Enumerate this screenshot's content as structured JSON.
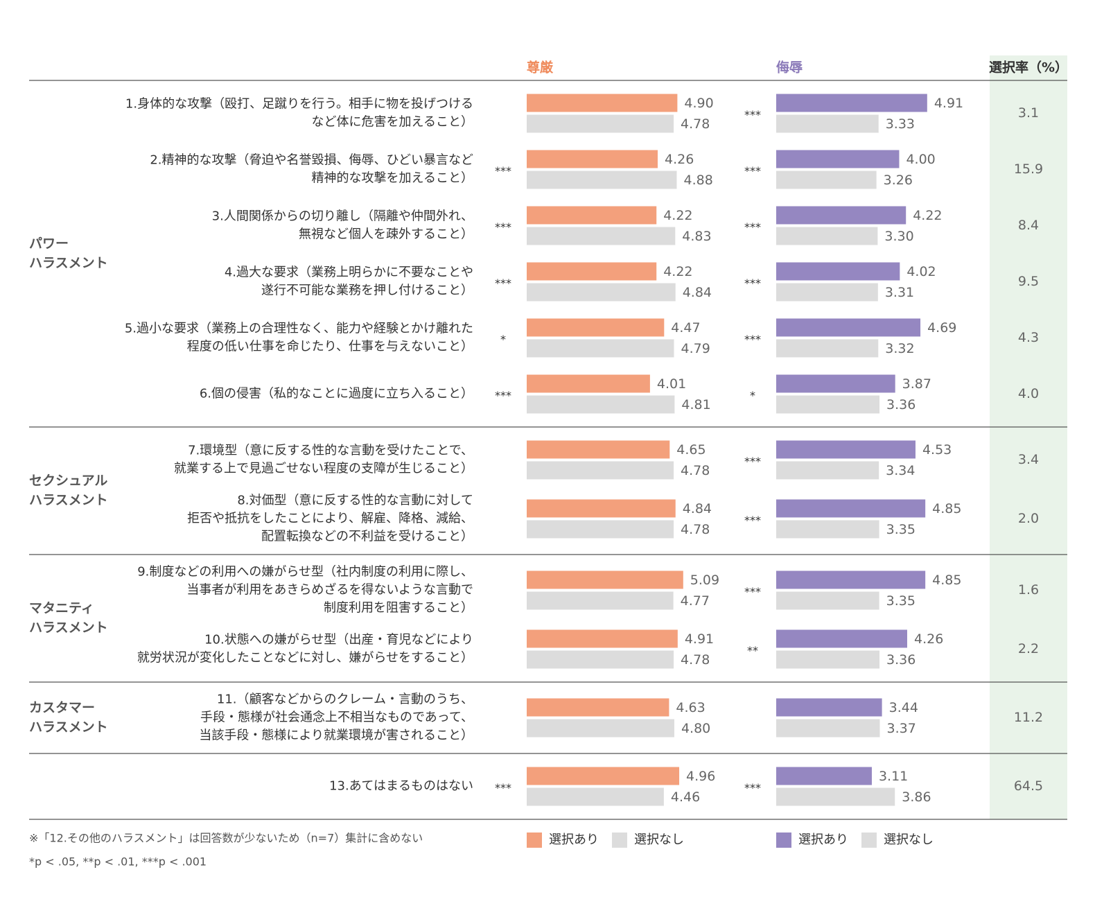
{
  "chart_data": {
    "type": "bar",
    "xlim": [
      0,
      5.5
    ],
    "groups": [
      {
        "label": [
          "パワー",
          "ハラスメント"
        ],
        "items": [
          {
            "label": [
              "1.身体的な攻撃（殴打、足蹴りを行う。相手に物を投げつける",
              "など体に危害を加えること）"
            ]
          },
          {
            "label": [
              "2.精神的な攻撃（脅迫や名誉毀損、侮辱、ひどい暴言など",
              "精神的な攻撃を加えること）"
            ]
          },
          {
            "label": [
              "3.人間関係からの切り離し（隔離や仲間外れ、",
              "無視など個人を疎外すること）"
            ]
          },
          {
            "label": [
              "4.過大な要求（業務上明らかに不要なことや",
              "遂行不可能な業務を押し付けること）"
            ]
          },
          {
            "label": [
              "5.過小な要求（業務上の合理性なく、能力や経験とかけ離れた",
              "程度の低い仕事を命じたり、仕事を与えないこと）"
            ]
          },
          {
            "label": [
              "6.個の侵害（私的なことに過度に立ち入ること）"
            ]
          }
        ]
      },
      {
        "label": [
          "セクシュアル",
          "ハラスメント"
        ],
        "items": [
          {
            "label": [
              "7.環境型（意に反する性的な言動を受けたことで、",
              "就業する上で見過ごせない程度の支障が生じること）"
            ]
          },
          {
            "label": [
              "8.対価型（意に反する性的な言動に対して",
              "拒否や抵抗をしたことにより、解雇、降格、減給、",
              "配置転換などの不利益を受けること）"
            ]
          }
        ]
      },
      {
        "label": [
          "マタニティ",
          "ハラスメント"
        ],
        "items": [
          {
            "label": [
              "9.制度などの利用への嫌がらせ型（社内制度の利用に際し、",
              "当事者が利用をあきらめざるを得ないような言動で",
              "制度利用を阻害すること）"
            ]
          },
          {
            "label": [
              "10.状態への嫌がらせ型（出産・育児などにより",
              "就労状況が変化したことなどに対し、嫌がらせをすること）"
            ]
          }
        ]
      },
      {
        "label": [
          "カスタマー",
          "ハラスメント"
        ],
        "items": [
          {
            "label": [
              "11.（顧客などからのクレーム・言動のうち、",
              "手段・態様が社会通念上不相当なものであって、",
              "当該手段・態様により就業環境が害されること）"
            ]
          }
        ]
      },
      {
        "label": null,
        "items": [
          {
            "label": [
              "13.あてはまるものはない"
            ]
          }
        ]
      }
    ],
    "panels": [
      {
        "title": "尊厳",
        "title_color": "#ef8a5b",
        "significance": [
          null,
          "***",
          "***",
          "***",
          "*",
          "***",
          null,
          null,
          null,
          null,
          null,
          "***"
        ],
        "series": [
          {
            "name": "選択あり",
            "color": "#f3a07c",
            "values": [
              4.9,
              4.26,
              4.22,
              4.22,
              4.47,
              4.01,
              4.65,
              4.84,
              5.09,
              4.91,
              4.63,
              4.96
            ],
            "value_labels": [
              "4.90",
              "4.26",
              "4.22",
              "4.22",
              "4.47",
              "4.01",
              "4.65",
              "4.84",
              "5.09",
              "4.91",
              "4.63",
              "4.96"
            ]
          },
          {
            "name": "選択なし",
            "color": "#dcdcdc",
            "values": [
              4.78,
              4.88,
              4.83,
              4.84,
              4.79,
              4.81,
              4.78,
              4.78,
              4.77,
              4.78,
              4.8,
              4.46
            ],
            "value_labels": [
              "4.78",
              "4.88",
              "4.83",
              "4.84",
              "4.79",
              "4.81",
              "4.78",
              "4.78",
              "4.77",
              "4.78",
              "4.80",
              "4.46"
            ]
          }
        ]
      },
      {
        "title": "侮辱",
        "title_color": "#8a79b8",
        "significance": [
          "***",
          "***",
          "***",
          "***",
          "***",
          "*",
          "***",
          "***",
          "***",
          "**",
          null,
          "***"
        ],
        "series": [
          {
            "name": "選択あり",
            "color": "#9587c1",
            "values": [
              4.91,
              4.0,
              4.22,
              4.02,
              4.69,
              3.87,
              4.53,
              4.85,
              4.85,
              4.26,
              3.44,
              3.11
            ],
            "value_labels": [
              "4.91",
              "4.00",
              "4.22",
              "4.02",
              "4.69",
              "3.87",
              "4.53",
              "4.85",
              "4.85",
              "4.26",
              "3.44",
              "3.11"
            ]
          },
          {
            "name": "選択なし",
            "color": "#dcdcdc",
            "values": [
              3.33,
              3.26,
              3.3,
              3.31,
              3.32,
              3.36,
              3.34,
              3.35,
              3.35,
              3.36,
              3.37,
              3.86
            ],
            "value_labels": [
              "3.33",
              "3.26",
              "3.30",
              "3.31",
              "3.32",
              "3.36",
              "3.34",
              "3.35",
              "3.35",
              "3.36",
              "3.37",
              "3.86"
            ]
          }
        ]
      }
    ],
    "rate": {
      "title": "選択率（%）",
      "color": "#e9f3e9",
      "values": [
        3.1,
        15.9,
        8.4,
        9.5,
        4.3,
        4.0,
        3.4,
        2.0,
        1.6,
        2.2,
        11.2,
        64.5
      ],
      "value_labels": [
        "3.1",
        "15.9",
        "8.4",
        "9.5",
        "4.3",
        "4.0",
        "3.4",
        "2.0",
        "1.6",
        "2.2",
        "11.2",
        "64.5"
      ]
    },
    "footnotes": [
      "※「12.その他のハラスメント」は回答数が少ないため（n=7）集計に含めない",
      "*p < .05, **p < .01, ***p < .001"
    ]
  }
}
